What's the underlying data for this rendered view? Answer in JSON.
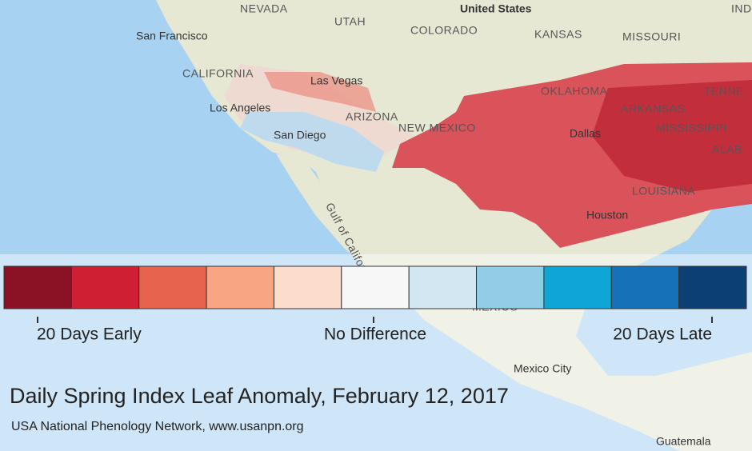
{
  "map": {
    "labels": [
      "NEVADA",
      "UTAH",
      "United States",
      "KANSAS",
      "MISSOURI",
      "COLORADO",
      "San Francisco",
      "CALIFORNIA",
      "Las Vegas",
      "Los Angeles",
      "ARIZONA",
      "San Diego",
      "NEW MEXICO",
      "OKLAHOMA",
      "ARKANSAS",
      "TENNE",
      "MISSISSIPPI",
      "ALAB",
      "Dallas",
      "LOUISIANA",
      "Houston",
      "Gulf of California",
      "MEXICO",
      "Mexico City",
      "Guatemala",
      "IND"
    ]
  },
  "legend": {
    "colors": [
      "#8b1124",
      "#cf1f33",
      "#e8634e",
      "#f7a583",
      "#fcdcca",
      "#f7f7f7",
      "#d3e7f2",
      "#92cde6",
      "#0fa6d6",
      "#1671b8",
      "#0c3f73"
    ],
    "labels": [
      "20 Days Early",
      "No Difference",
      "20 Days Late"
    ]
  },
  "title": "Daily Spring Index Leaf Anomaly, February 12, 2017",
  "subtitle": "USA National Phenology Network, www.usanpn.org"
}
